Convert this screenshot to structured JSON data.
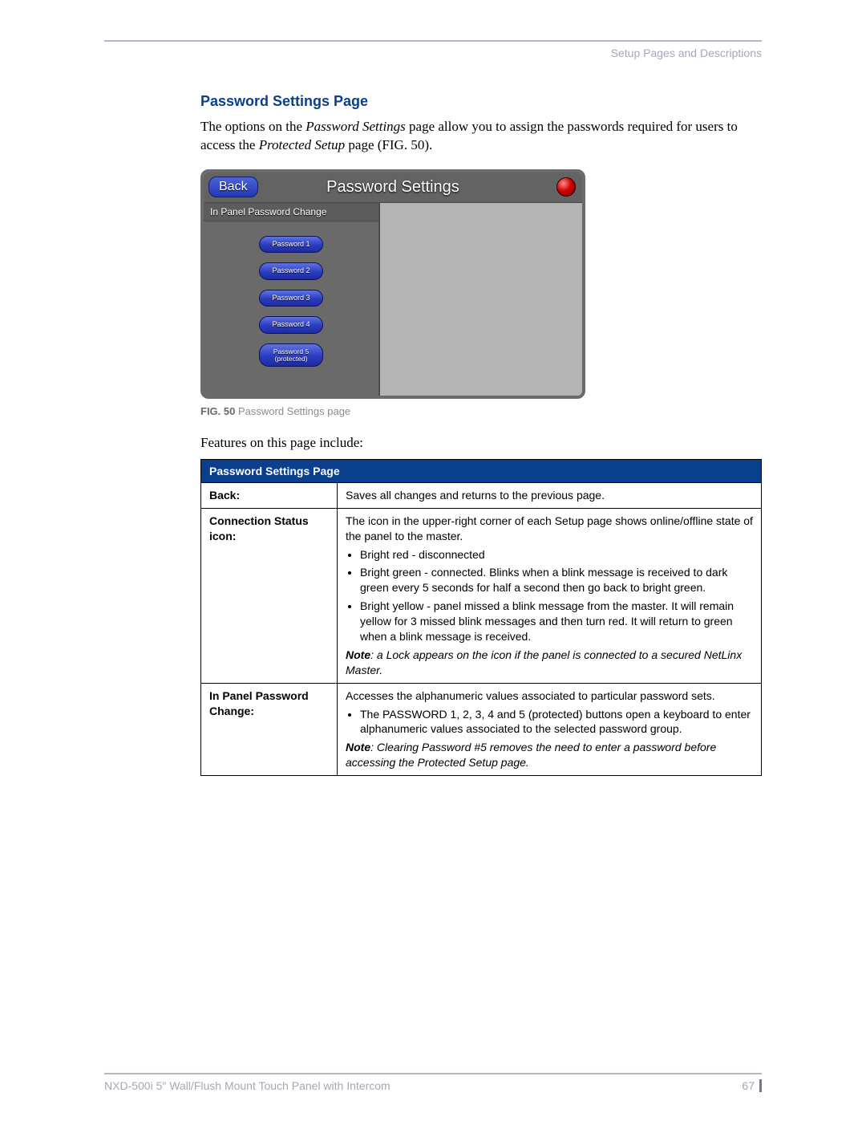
{
  "header": {
    "section": "Setup Pages and Descriptions"
  },
  "heading": "Password Settings Page",
  "intro": {
    "pre": "The options on the ",
    "em1": "Password Settings",
    "mid": " page allow you to assign the passwords required for users to access the ",
    "em2": "Protected Setup",
    "post": " page (FIG. 50)."
  },
  "panel": {
    "back": "Back",
    "title": "Password Settings",
    "left_title": "In Panel Password Change",
    "buttons": [
      "Password 1",
      "Password 2",
      "Password 3",
      "Password 4",
      "Password 5\n(protected)"
    ]
  },
  "caption": {
    "bold": "FIG. 50",
    "rest": "  Password Settings page"
  },
  "features_line": "Features on this page include:",
  "table": {
    "header": "Password Settings Page",
    "rows": [
      {
        "label": "Back:",
        "body": "Saves all changes and returns to the previous page."
      },
      {
        "label": "Connection Status icon:",
        "body": "The icon in the upper-right corner of each Setup page shows online/offline state of the panel to the master.",
        "bullets": [
          "Bright red - disconnected",
          "Bright green - connected. Blinks when a blink message is received to dark green every 5 seconds for half a second then go back to bright green.",
          "Bright yellow - panel missed a blink message from the master. It will remain yellow for 3 missed blink messages and then turn red. It will return to green when a blink message is received."
        ],
        "note_bold": "Note",
        "note": ": a Lock appears on the icon if the panel is connected to a secured NetLinx Master."
      },
      {
        "label": "In Panel Password Change:",
        "body": "Accesses the alphanumeric values associated to particular password sets.",
        "bullets": [
          "The PASSWORD 1, 2, 3, 4 and 5 (protected) buttons open a keyboard to enter alphanumeric values associated to the selected password group."
        ],
        "note_bold": "Note",
        "note": ": Clearing Password #5 removes the need to enter a password before accessing the Protected Setup page."
      }
    ]
  },
  "footer": {
    "product": "NXD-500i 5\" Wall/Flush Mount Touch Panel with Intercom",
    "page": "67"
  }
}
